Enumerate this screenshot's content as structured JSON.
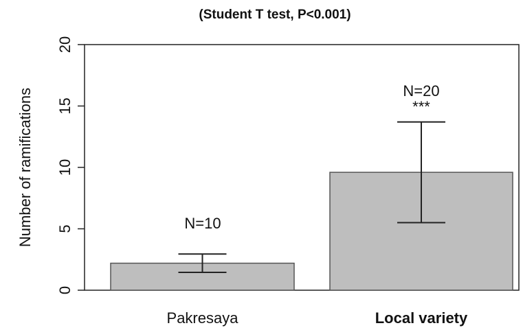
{
  "chart_data": {
    "type": "bar",
    "title": "(Student T test, P<0.001)",
    "ylabel": "Number of ramifications",
    "categories": [
      "Pakresaya",
      "Local variety"
    ],
    "values": [
      2.2,
      9.6
    ],
    "errors": [
      0.75,
      4.1
    ],
    "annotations": [
      "N=10",
      "N=20",
      "***"
    ],
    "color": "#bebebe",
    "ylim": [
      0,
      20
    ],
    "yticks": [
      0,
      5,
      10,
      15,
      20
    ]
  }
}
